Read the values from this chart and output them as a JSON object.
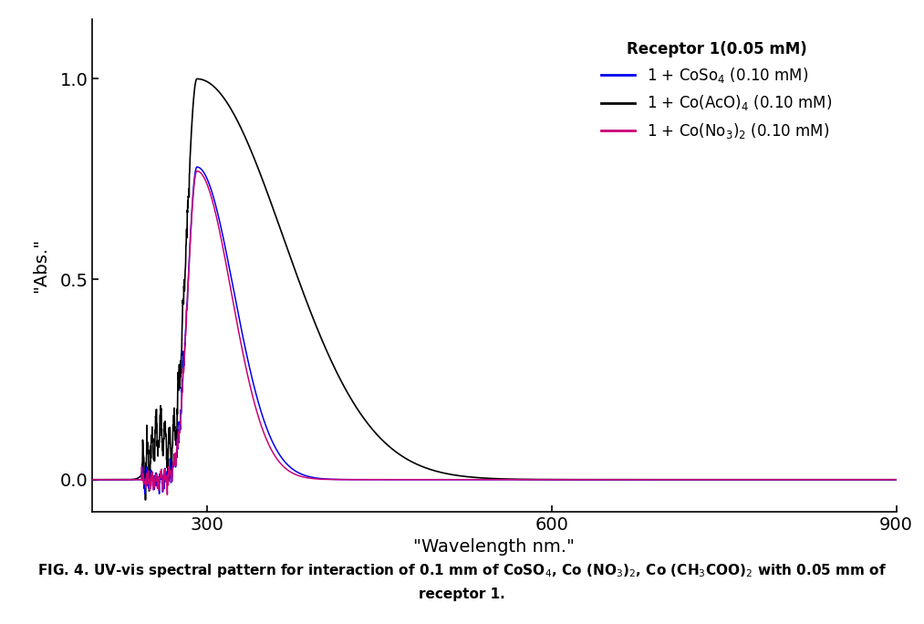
{
  "xlabel": "\"Wavelength nm.\"",
  "ylabel": "\"Abs.\"",
  "xlim": [
    200,
    900
  ],
  "ylim": [
    -0.08,
    1.15
  ],
  "xticks": [
    300,
    600,
    900
  ],
  "yticks": [
    0.0,
    0.5,
    1.0
  ],
  "bg_color": "#ffffff",
  "line_colors": {
    "blue": "#0000ee",
    "black": "#000000",
    "pink": "#cc0077"
  },
  "legend_title": "Receptor 1(0.05 mM)",
  "legend_entries": [
    "1 + CoSo$_4$ (0.10 mM)",
    "1 + Co(AcO)$_4$ (0.10 mM)",
    "1 + Co(No$_3$)$_2$ (0.10 mM)"
  ],
  "peak_wavelength": 291,
  "caption_line1": "FIG. 4. UV-vis spectral pattern for interaction of 0.1 mm of CoSO$_4$, Co (NO$_3$)$_2$, Co (CH$_3$COO)$_2$ with 0.05 mm of",
  "caption_line2": "receptor 1."
}
